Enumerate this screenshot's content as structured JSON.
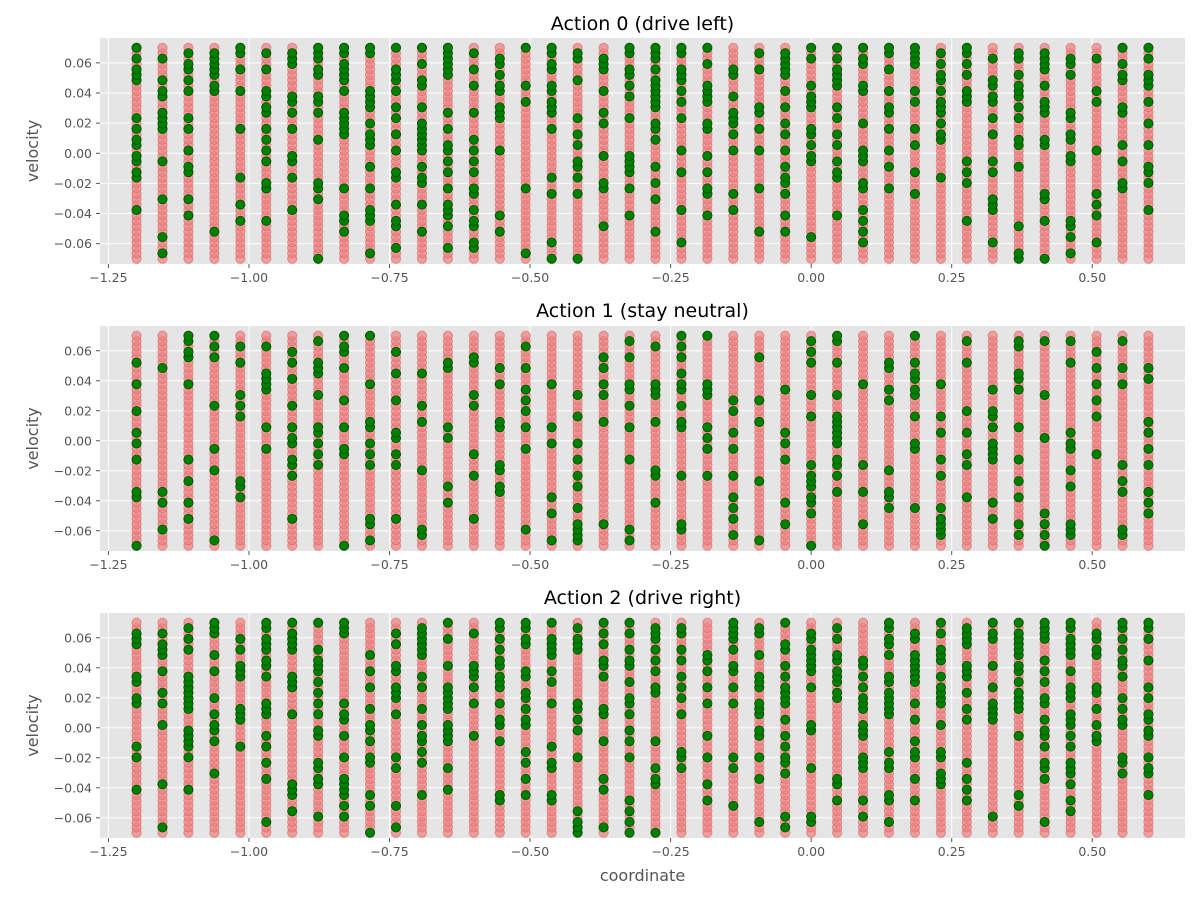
{
  "chart_data": [
    {
      "type": "scatter",
      "title": "Action 0 (drive left)",
      "xlabel": "",
      "ylabel": "velocity",
      "xlim": [
        -1.265,
        0.665
      ],
      "ylim": [
        -0.0735,
        0.0765
      ],
      "xticks": [
        -1.25,
        -1.0,
        -0.75,
        -0.5,
        -0.25,
        0.0,
        0.25,
        0.5
      ],
      "xtick_labels": [
        "−1.25",
        "−1.00",
        "−0.75",
        "−0.50",
        "−0.25",
        "0.00",
        "0.25",
        "0.50"
      ],
      "yticks": [
        -0.06,
        -0.04,
        -0.02,
        0.0,
        0.02,
        0.04,
        0.06
      ],
      "ytick_labels": [
        "−0.06",
        "−0.04",
        "−0.02",
        "0.00",
        "0.02",
        "0.04",
        "0.06"
      ],
      "grid": true,
      "seed": 101,
      "bias": -0.45,
      "density": 0.32
    },
    {
      "type": "scatter",
      "title": "Action 1 (stay neutral)",
      "xlabel": "",
      "ylabel": "velocity",
      "xlim": [
        -1.265,
        0.665
      ],
      "ylim": [
        -0.0735,
        0.0765
      ],
      "xticks": [
        -1.25,
        -1.0,
        -0.75,
        -0.5,
        -0.25,
        0.0,
        0.25,
        0.5
      ],
      "xtick_labels": [
        "−1.25",
        "−1.00",
        "−0.75",
        "−0.50",
        "−0.25",
        "0.00",
        "0.25",
        "0.50"
      ],
      "yticks": [
        -0.06,
        -0.04,
        -0.02,
        0.0,
        0.02,
        0.04,
        0.06
      ],
      "ytick_labels": [
        "−0.06",
        "−0.04",
        "−0.02",
        "0.00",
        "0.02",
        "0.04",
        "0.06"
      ],
      "grid": true,
      "seed": 202,
      "bias": 0.0,
      "density": 0.2
    },
    {
      "type": "scatter",
      "title": "Action 2 (drive right)",
      "xlabel": "coordinate",
      "ylabel": "velocity",
      "xlim": [
        -1.265,
        0.665
      ],
      "ylim": [
        -0.0735,
        0.0765
      ],
      "xticks": [
        -1.25,
        -1.0,
        -0.75,
        -0.5,
        -0.25,
        0.0,
        0.25,
        0.5
      ],
      "xtick_labels": [
        "−1.25",
        "−1.00",
        "−0.75",
        "−0.50",
        "−0.25",
        "0.00",
        "0.25",
        "0.50"
      ],
      "yticks": [
        -0.06,
        -0.04,
        -0.02,
        0.0,
        0.02,
        0.04,
        0.06
      ],
      "ytick_labels": [
        "−0.06",
        "−0.04",
        "−0.02",
        "0.00",
        "0.02",
        "0.04",
        "0.06"
      ],
      "grid": true,
      "seed": 303,
      "bias": 0.45,
      "density": 0.34
    }
  ],
  "grid_points": {
    "x_min": -1.2,
    "x_max": 0.6,
    "x_count": 40,
    "v_min": -0.07,
    "v_max": 0.07,
    "v_count": 40
  },
  "colors": {
    "background_points": "#f08080",
    "background_edge": "#e06060",
    "highlight_points": "#008000",
    "highlight_edge": "#004d00",
    "panel": "#e5e5e5",
    "grid": "#ffffff"
  }
}
